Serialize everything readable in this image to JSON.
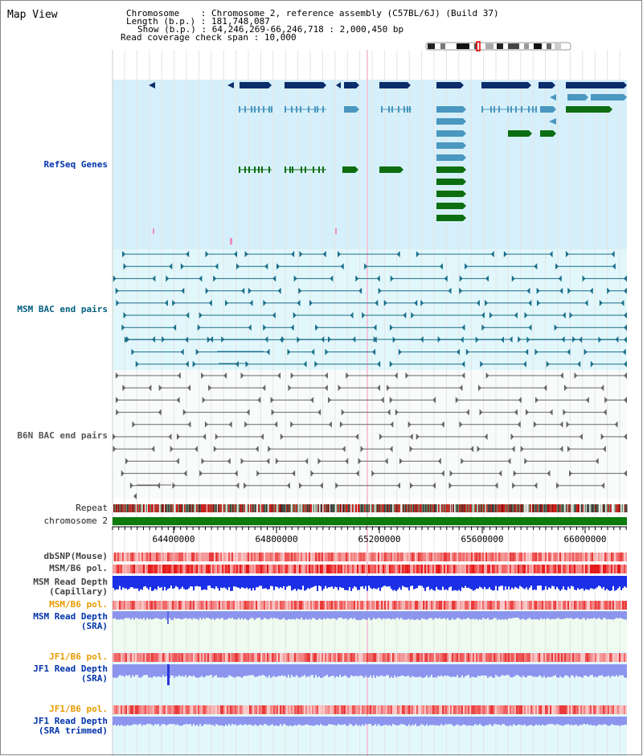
{
  "title": "Map View",
  "info": {
    "chromosome_label": "Chromosome",
    "chromosome_value": "Chromosome 2, reference assembly (C57BL/6J) (Build 37)",
    "length_label": "Length (b.p.)",
    "length_value": "181,748,087",
    "show_label": "Show (b.p.)",
    "show_value": "64,246,269-66,246,718 : 2,000,450 bp",
    "coverage_label": "Read coverage check span",
    "coverage_value": "10,000"
  },
  "tracks": {
    "refseq": "RefSeq Genes",
    "msm_bac": "MSM BAC end pairs",
    "b6n_bac": "B6N BAC end pairs",
    "repeat": "Repeat",
    "chromosome": "chromosome 2",
    "dbsnp": "dbSNP(Mouse)",
    "msm_b6_pol_1": "MSM/B6 pol.",
    "msm_read_depth_cap_1": "MSM Read Depth",
    "msm_read_depth_cap_2": "(Capillary)",
    "msm_b6_pol_2": "MSM/B6 pol.",
    "msm_read_depth_sra_1": "MSM Read Depth",
    "msm_read_depth_sra_2": "(SRA)",
    "jf1_b6_pol_1": "JF1/B6 pol.",
    "jf1_read_depth_sra_1": "JF1 Read Depth",
    "jf1_read_depth_sra_2": "(SRA)",
    "jf1_b6_pol_2": "JF1/B6 pol.",
    "jf1_read_depth_trim_1": "JF1 Read Depth",
    "jf1_read_depth_trim_2": "(SRA trimmed)"
  },
  "axis_ticks": [
    "64400000",
    "64800000",
    "65200000",
    "65600000",
    "66000000"
  ],
  "colors": {
    "label_blue": "#0033aa",
    "label_teal": "#005f7f",
    "label_gray": "#444444",
    "label_orange": "#e89a00",
    "refseq_bg": "#d6f0fb",
    "msm_bg": "#e1f7fb",
    "gene_dark": "#0b2d6b",
    "gene_mid": "#4a97c0",
    "gene_green": "#0c6e10",
    "bac_teal": "#1b6f8a",
    "bac_gray": "#666666",
    "chrom_green": "#0d7a0d",
    "depth_blue": "#1a2fe6",
    "depth_light": "#8c95ee"
  }
}
